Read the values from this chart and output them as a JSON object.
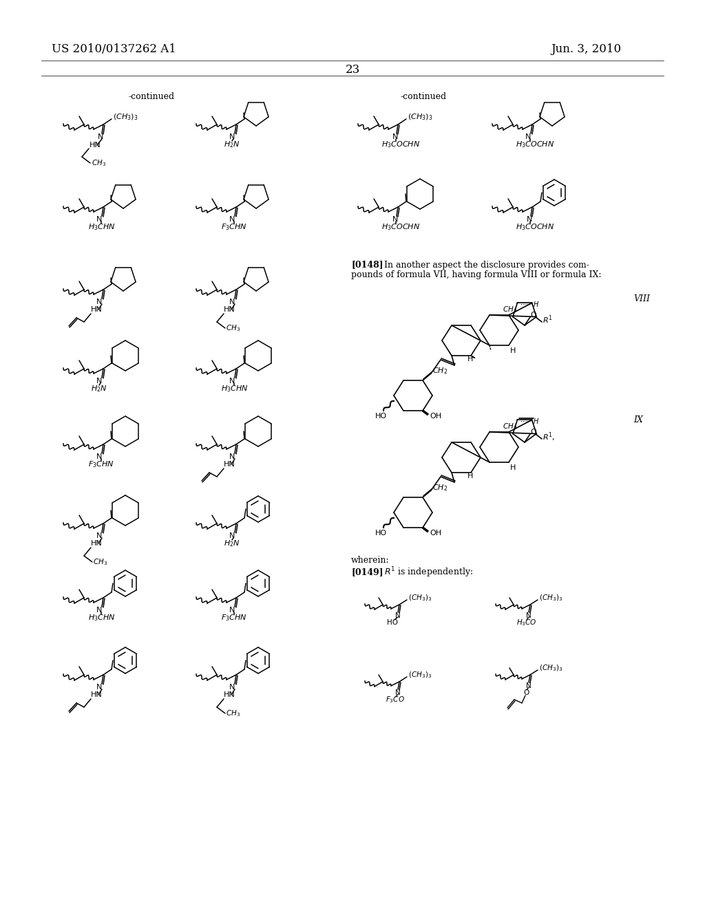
{
  "patent_number": "US 2010/0137262 A1",
  "patent_date": "Jun. 3, 2010",
  "page_number": "23"
}
